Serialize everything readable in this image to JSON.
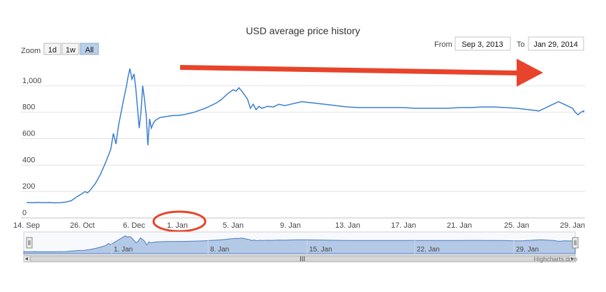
{
  "chart_data": {
    "type": "line",
    "title": "USD average price history",
    "xlabel": "",
    "ylabel": "",
    "ylim": [
      0,
      1200
    ],
    "y_ticks": [
      0,
      200,
      400,
      600,
      800,
      "1,000"
    ],
    "x_tick_labels": [
      "14. Sep",
      "26. Oct",
      "6. Dec",
      "1. Jan",
      "5. Jan",
      "9. Jan",
      "13. Jan",
      "17. Jan",
      "21. Jan",
      "25. Jan",
      "29. Jan"
    ],
    "grid": true,
    "legend": "none",
    "line_color": "#3b7fd0",
    "series": [
      {
        "x_tick_positions": [
          0,
          1,
          2,
          3,
          4,
          5,
          6,
          7,
          8,
          9,
          10
        ],
        "points": [
          [
            0.0,
            118
          ],
          [
            0.1,
            115
          ],
          [
            0.2,
            118
          ],
          [
            0.3,
            116
          ],
          [
            0.4,
            117
          ],
          [
            0.5,
            114
          ],
          [
            0.6,
            116
          ],
          [
            0.7,
            120
          ],
          [
            0.8,
            130
          ],
          [
            0.9,
            160
          ],
          [
            1.0,
            185
          ],
          [
            1.05,
            200
          ],
          [
            1.1,
            190
          ],
          [
            1.15,
            210
          ],
          [
            1.25,
            260
          ],
          [
            1.35,
            330
          ],
          [
            1.45,
            420
          ],
          [
            1.55,
            520
          ],
          [
            1.6,
            640
          ],
          [
            1.65,
            560
          ],
          [
            1.7,
            700
          ],
          [
            1.75,
            800
          ],
          [
            1.8,
            900
          ],
          [
            1.85,
            990
          ],
          [
            1.88,
            1060
          ],
          [
            1.92,
            1130
          ],
          [
            1.96,
            1050
          ],
          [
            2.0,
            1090
          ],
          [
            2.04,
            980
          ],
          [
            2.08,
            830
          ],
          [
            2.12,
            680
          ],
          [
            2.16,
            800
          ],
          [
            2.2,
            1000
          ],
          [
            2.24,
            900
          ],
          [
            2.28,
            780
          ],
          [
            2.32,
            550
          ],
          [
            2.36,
            750
          ],
          [
            2.4,
            680
          ],
          [
            2.45,
            720
          ],
          [
            2.5,
            740
          ],
          [
            2.6,
            760
          ],
          [
            2.7,
            765
          ],
          [
            2.8,
            770
          ],
          [
            2.9,
            775
          ],
          [
            3.0,
            775
          ],
          [
            3.1,
            780
          ],
          [
            3.2,
            790
          ],
          [
            3.3,
            800
          ],
          [
            3.4,
            815
          ],
          [
            3.5,
            830
          ],
          [
            3.6,
            850
          ],
          [
            3.7,
            870
          ],
          [
            3.8,
            900
          ],
          [
            3.9,
            940
          ],
          [
            4.0,
            970
          ],
          [
            4.05,
            960
          ],
          [
            4.1,
            985
          ],
          [
            4.15,
            960
          ],
          [
            4.2,
            930
          ],
          [
            4.25,
            900
          ],
          [
            4.3,
            830
          ],
          [
            4.35,
            860
          ],
          [
            4.4,
            820
          ],
          [
            4.45,
            845
          ],
          [
            4.5,
            830
          ],
          [
            4.6,
            845
          ],
          [
            4.7,
            840
          ],
          [
            4.8,
            860
          ],
          [
            4.9,
            850
          ],
          [
            5.0,
            860
          ],
          [
            5.1,
            870
          ],
          [
            5.2,
            880
          ],
          [
            5.3,
            875
          ],
          [
            5.4,
            870
          ],
          [
            5.5,
            865
          ],
          [
            5.6,
            860
          ],
          [
            5.7,
            855
          ],
          [
            5.8,
            850
          ],
          [
            5.9,
            845
          ],
          [
            6.0,
            840
          ],
          [
            6.2,
            835
          ],
          [
            6.4,
            835
          ],
          [
            6.6,
            835
          ],
          [
            6.8,
            835
          ],
          [
            7.0,
            835
          ],
          [
            7.2,
            830
          ],
          [
            7.4,
            830
          ],
          [
            7.6,
            830
          ],
          [
            7.8,
            830
          ],
          [
            8.0,
            835
          ],
          [
            8.2,
            835
          ],
          [
            8.4,
            840
          ],
          [
            8.6,
            840
          ],
          [
            8.8,
            835
          ],
          [
            9.0,
            830
          ],
          [
            9.1,
            825
          ],
          [
            9.2,
            820
          ],
          [
            9.3,
            815
          ],
          [
            9.4,
            810
          ],
          [
            9.5,
            830
          ],
          [
            9.6,
            850
          ],
          [
            9.7,
            870
          ],
          [
            9.75,
            880
          ],
          [
            9.8,
            870
          ],
          [
            9.85,
            860
          ],
          [
            9.9,
            850
          ],
          [
            9.95,
            840
          ],
          [
            10.0,
            830
          ],
          [
            10.05,
            800
          ],
          [
            10.1,
            780
          ],
          [
            10.15,
            800
          ],
          [
            10.2,
            810
          ],
          [
            10.3,
            805
          ],
          [
            10.4,
            800
          ]
        ]
      }
    ],
    "navigator_tick_labels": [
      "1. Jan",
      "8. Jan",
      "15. Jan",
      "22. Jan",
      "29. Jan"
    ]
  },
  "controls": {
    "zoom_label": "Zoom",
    "zoom_buttons": [
      "1d",
      "1w",
      "All"
    ],
    "selected_zoom": "All",
    "from_label": "From",
    "from_value": "Sep 3, 2013",
    "to_label": "To",
    "to_value": "Jan 29, 2014"
  },
  "annotations": {
    "arrow_color": "#e8432b",
    "circle_color": "#e8432b"
  },
  "credit": "Highcharts.com"
}
